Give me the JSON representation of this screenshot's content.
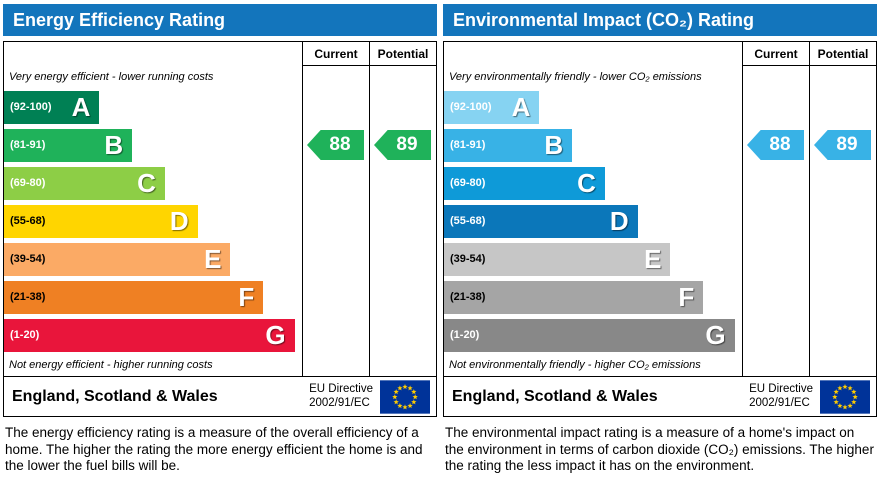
{
  "chart_data": [
    {
      "type": "bar",
      "title": "Energy Efficiency Rating",
      "categories": [
        "A (92-100)",
        "B (81-91)",
        "C (69-80)",
        "D (55-68)",
        "E (39-54)",
        "F (21-38)",
        "G (1-20)"
      ],
      "series": [
        {
          "name": "Current",
          "values": [
            88
          ]
        },
        {
          "name": "Potential",
          "values": [
            89
          ]
        }
      ],
      "current": 88,
      "potential": 89,
      "current_band": "B",
      "potential_band": "B",
      "value_range": [
        1,
        100
      ],
      "annotations": [
        "Very energy efficient - lower running costs",
        "Not energy efficient - higher running costs"
      ]
    },
    {
      "type": "bar",
      "title": "Environmental Impact (CO₂) Rating",
      "categories": [
        "A (92-100)",
        "B (81-91)",
        "C (69-80)",
        "D (55-68)",
        "E (39-54)",
        "F (21-38)",
        "G (1-20)"
      ],
      "series": [
        {
          "name": "Current",
          "values": [
            88
          ]
        },
        {
          "name": "Potential",
          "values": [
            89
          ]
        }
      ],
      "current": 88,
      "potential": 89,
      "current_band": "B",
      "potential_band": "B",
      "value_range": [
        1,
        100
      ],
      "annotations": [
        "Very environmentally friendly - lower CO₂ emissions",
        "Not environmentally friendly - higher CO₂ emissions"
      ]
    }
  ],
  "theme": {
    "header_bg": "#1375bc",
    "flag_bg": "#003399",
    "flag_star": "#ffcc00"
  },
  "panels": [
    {
      "header": "Energy Efficiency Rating",
      "col_current": "Current",
      "col_potential": "Potential",
      "top_caption": "Very energy efficient - lower running costs",
      "bottom_caption": "Not energy efficient - higher running costs",
      "bands": [
        {
          "range": "(92-100)",
          "letter": "A",
          "color": "#008054",
          "width_pct": 32,
          "range_color": "#ffffff"
        },
        {
          "range": "(81-91)",
          "letter": "B",
          "color": "#1fb25a",
          "width_pct": 43,
          "range_color": "#ffffff"
        },
        {
          "range": "(69-80)",
          "letter": "C",
          "color": "#8dce46",
          "width_pct": 54,
          "range_color": "#ffffff"
        },
        {
          "range": "(55-68)",
          "letter": "D",
          "color": "#ffd500",
          "width_pct": 65,
          "range_color": "#000000"
        },
        {
          "range": "(39-54)",
          "letter": "E",
          "color": "#fbaa65",
          "width_pct": 76,
          "range_color": "#000000"
        },
        {
          "range": "(21-38)",
          "letter": "F",
          "color": "#ef8023",
          "width_pct": 87,
          "range_color": "#000000"
        },
        {
          "range": "(1-20)",
          "letter": "G",
          "color": "#e9153b",
          "width_pct": 97.5,
          "range_color": "#ffffff"
        }
      ],
      "current": {
        "value": "88",
        "band_index": 1,
        "color": "#1fb25a"
      },
      "potential": {
        "value": "89",
        "band_index": 1,
        "color": "#1fb25a"
      },
      "footer": {
        "region": "England, Scotland & Wales",
        "directive_line1": "EU Directive",
        "directive_line2": "2002/91/EC",
        "flag_icon": "eu-flag-icon"
      },
      "description": "The energy efficiency rating is a measure of the overall efficiency of a home. The higher the rating the more energy efficient the home is and the lower the fuel bills will be."
    },
    {
      "header": "Environmental Impact (CO₂) Rating",
      "col_current": "Current",
      "col_potential": "Potential",
      "top_caption": "Very environmentally friendly - lower CO₂ emissions",
      "bottom_caption": "Not environmentally friendly - higher CO₂ emissions",
      "bands": [
        {
          "range": "(92-100)",
          "letter": "A",
          "color": "#86d3f2",
          "width_pct": 32,
          "range_color": "#ffffff"
        },
        {
          "range": "(81-91)",
          "letter": "B",
          "color": "#38b2e6",
          "width_pct": 43,
          "range_color": "#ffffff"
        },
        {
          "range": "(69-80)",
          "letter": "C",
          "color": "#0e9ad8",
          "width_pct": 54,
          "range_color": "#ffffff"
        },
        {
          "range": "(55-68)",
          "letter": "D",
          "color": "#0b77ba",
          "width_pct": 65,
          "range_color": "#ffffff"
        },
        {
          "range": "(39-54)",
          "letter": "E",
          "color": "#c6c6c6",
          "width_pct": 76,
          "range_color": "#000000"
        },
        {
          "range": "(21-38)",
          "letter": "F",
          "color": "#a5a5a5",
          "width_pct": 87,
          "range_color": "#000000"
        },
        {
          "range": "(1-20)",
          "letter": "G",
          "color": "#888888",
          "width_pct": 97.5,
          "range_color": "#ffffff"
        }
      ],
      "current": {
        "value": "88",
        "band_index": 1,
        "color": "#38b2e6"
      },
      "potential": {
        "value": "89",
        "band_index": 1,
        "color": "#38b2e6"
      },
      "footer": {
        "region": "England, Scotland & Wales",
        "directive_line1": "EU Directive",
        "directive_line2": "2002/91/EC",
        "flag_icon": "eu-flag-icon"
      },
      "description": "The environmental impact rating is a measure of a home's impact on the environment in terms of carbon dioxide (CO₂) emissions. The higher the rating the less impact it has on the environment."
    }
  ]
}
